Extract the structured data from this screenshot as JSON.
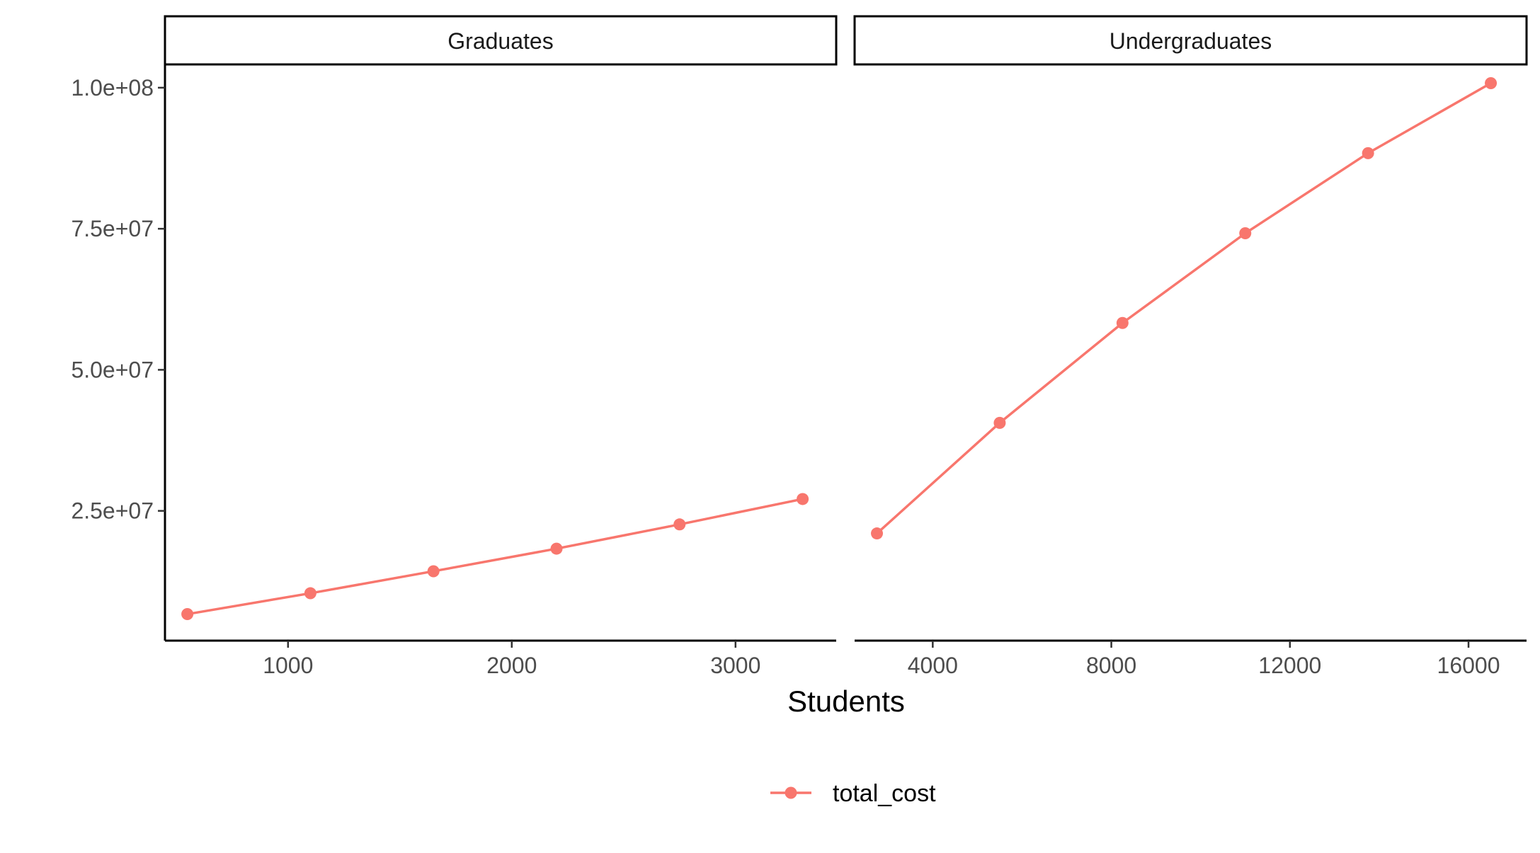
{
  "chart_data": {
    "type": "line",
    "xlabel": "Students",
    "ylabel": "",
    "ylim": [
      2000000,
      104000000
    ],
    "y_ticks": [
      25000000,
      50000000,
      75000000,
      100000000
    ],
    "y_tick_labels": [
      "2.5e+07",
      "5.0e+07",
      "7.5e+07",
      "1.0e+08"
    ],
    "legend": {
      "position": "bottom",
      "entries": [
        "total_cost"
      ]
    },
    "grid": false,
    "series_color": "#F8766D",
    "panels": [
      {
        "strip_label": "Graduates",
        "xlim": [
          450,
          3450
        ],
        "x_ticks": [
          1000,
          2000,
          3000
        ],
        "x_tick_labels": [
          "1000",
          "2000",
          "3000"
        ],
        "series": [
          {
            "name": "total_cost",
            "x": [
              550,
              1100,
              1650,
              2200,
              2750,
              3300
            ],
            "y": [
              6700000,
              10400000,
              14300000,
              18300000,
              22600000,
              27100000
            ]
          }
        ]
      },
      {
        "strip_label": "Undergraduates",
        "xlim": [
          2250,
          17300
        ],
        "x_ticks": [
          4000,
          8000,
          12000,
          16000
        ],
        "x_tick_labels": [
          "4000",
          "8000",
          "12000",
          "16000"
        ],
        "series": [
          {
            "name": "total_cost",
            "x": [
              2750,
              5500,
              8250,
              11000,
              13750,
              16500
            ],
            "y": [
              21000000,
              40600000,
              58300000,
              74200000,
              88400000,
              100800000
            ]
          }
        ]
      }
    ]
  }
}
